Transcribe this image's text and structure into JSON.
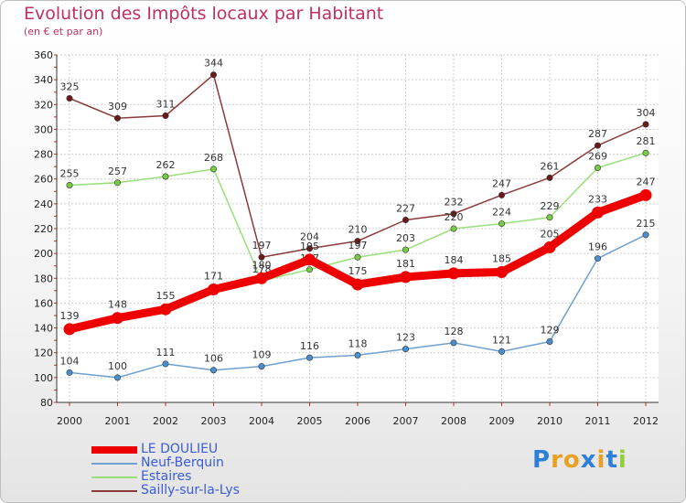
{
  "chart_data": {
    "type": "line",
    "title": "Evolution des Impôts locaux par Habitant",
    "subtitle": "(en € et par an)",
    "xlabel": "",
    "ylabel": "",
    "x": [
      "2000",
      "2001",
      "2002",
      "2003",
      "2004",
      "2005",
      "2006",
      "2007",
      "2008",
      "2009",
      "2010",
      "2011",
      "2012"
    ],
    "ylim": [
      80,
      360
    ],
    "yticks": [
      80,
      100,
      120,
      140,
      160,
      180,
      200,
      220,
      240,
      260,
      280,
      300,
      320,
      340,
      360
    ],
    "grid": true,
    "series": [
      {
        "name": "LE DOULIEU",
        "color": "#ee0000",
        "values": [
          139,
          148,
          155,
          171,
          180,
          195,
          175,
          181,
          184,
          185,
          205,
          233,
          247
        ]
      },
      {
        "name": "Neuf-Berquin",
        "color": "#6fa0cf",
        "values": [
          104,
          100,
          111,
          106,
          109,
          116,
          118,
          123,
          128,
          121,
          129,
          196,
          215
        ]
      },
      {
        "name": "Estaires",
        "color": "#99e07a",
        "values": [
          255,
          257,
          262,
          268,
          178,
          187,
          197,
          203,
          220,
          224,
          229,
          269,
          281
        ]
      },
      {
        "name": "Sailly-sur-la-Lys",
        "color": "#8b3a3a",
        "values": [
          325,
          309,
          311,
          344,
          197,
          204,
          210,
          227,
          232,
          247,
          261,
          287,
          304
        ]
      }
    ]
  },
  "logo": {
    "letters": [
      "P",
      "r",
      "o",
      "x",
      "i",
      "t",
      "i"
    ],
    "colors": [
      "#2e7fd6",
      "#e8a020",
      "#e8a020",
      "#2e7fd6",
      "#e8a020",
      "#2e7fd6",
      "#8fcf3a"
    ]
  }
}
